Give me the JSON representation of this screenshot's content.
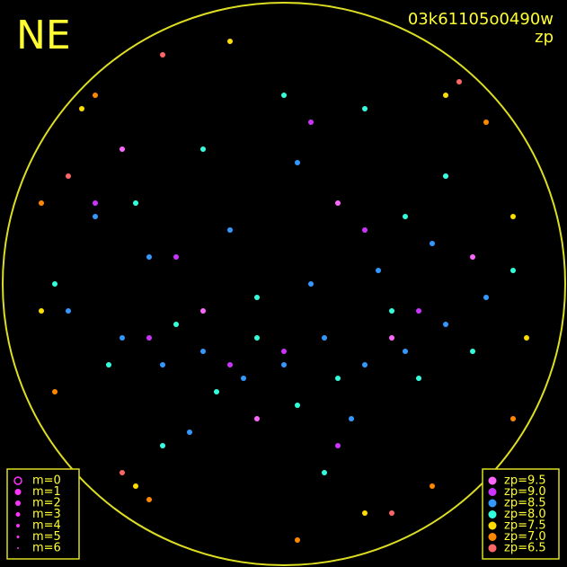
{
  "chart_data": {
    "type": "scatter",
    "title": "NE",
    "subtitle": "03k61105o0490w",
    "color_label": "zp",
    "size_legend": [
      "m=0",
      "m=1",
      "m=2",
      "m=3",
      "m=4",
      "m=5",
      "m=6"
    ],
    "xlim": [
      -1,
      1
    ],
    "ylim": [
      -1,
      1
    ],
    "series": [
      {
        "name": "zp=9.5",
        "color": "#ff66ff",
        "x": [
          -0.6,
          0.2,
          0.4,
          -0.3,
          0.7,
          -0.1
        ],
        "values": [
          0.5,
          0.3,
          -0.2,
          -0.1,
          0.1,
          -0.5
        ]
      },
      {
        "name": "zp=9.0",
        "color": "#cc33ff",
        "x": [
          -0.5,
          -0.2,
          0.1,
          0.3,
          -0.7,
          0.5,
          0.0,
          -0.4,
          0.6,
          0.2
        ],
        "values": [
          -0.2,
          -0.3,
          0.6,
          0.2,
          0.3,
          -0.1,
          -0.25,
          0.1,
          0.4,
          -0.6
        ]
      },
      {
        "name": "zp=8.5",
        "color": "#3399ff",
        "x": [
          -0.8,
          -0.6,
          -0.45,
          -0.3,
          -0.15,
          0,
          0.15,
          0.3,
          0.45,
          0.6,
          0.75,
          -0.5,
          -0.2,
          0.1,
          0.35,
          0.55,
          -0.7,
          0.05,
          -0.35,
          0.25
        ],
        "values": [
          -0.1,
          -0.2,
          -0.3,
          -0.25,
          -0.35,
          -0.3,
          -0.2,
          -0.3,
          -0.25,
          -0.15,
          -0.05,
          0.1,
          0.2,
          0.0,
          0.05,
          0.15,
          0.25,
          0.45,
          -0.55,
          -0.5
        ]
      },
      {
        "name": "zp=8.0",
        "color": "#33ffdd",
        "x": [
          -0.85,
          -0.65,
          -0.4,
          -0.25,
          -0.1,
          0.05,
          0.2,
          0.4,
          0.5,
          0.7,
          0.85,
          -0.55,
          -0.3,
          0.0,
          0.3,
          0.6,
          -0.45,
          0.15,
          -0.1,
          0.45
        ],
        "values": [
          0.0,
          -0.3,
          -0.15,
          -0.4,
          -0.2,
          -0.45,
          -0.35,
          -0.1,
          -0.35,
          -0.25,
          0.05,
          0.3,
          0.5,
          0.7,
          0.65,
          0.4,
          -0.6,
          -0.7,
          -0.05,
          0.25
        ]
      },
      {
        "name": "zp=7.5",
        "color": "#ffdd00",
        "x": [
          -0.75,
          0.85,
          -0.55,
          0.6,
          0.9,
          -0.9,
          0.3,
          -0.2
        ],
        "values": [
          0.65,
          0.25,
          -0.75,
          0.7,
          -0.2,
          -0.1,
          -0.85,
          0.9
        ]
      },
      {
        "name": "zp=7.0",
        "color": "#ff8800",
        "x": [
          -0.7,
          0.75,
          -0.85,
          0.85,
          -0.5,
          0.55,
          0.05,
          -0.9
        ],
        "values": [
          0.7,
          0.6,
          -0.4,
          -0.5,
          -0.8,
          -0.75,
          -0.95,
          0.3
        ]
      },
      {
        "name": "zp=6.5",
        "color": "#ff6666",
        "x": [
          -0.45,
          0.65,
          -0.8,
          0.4,
          -0.6
        ],
        "values": [
          0.85,
          0.75,
          0.4,
          -0.85,
          -0.7
        ]
      }
    ]
  }
}
